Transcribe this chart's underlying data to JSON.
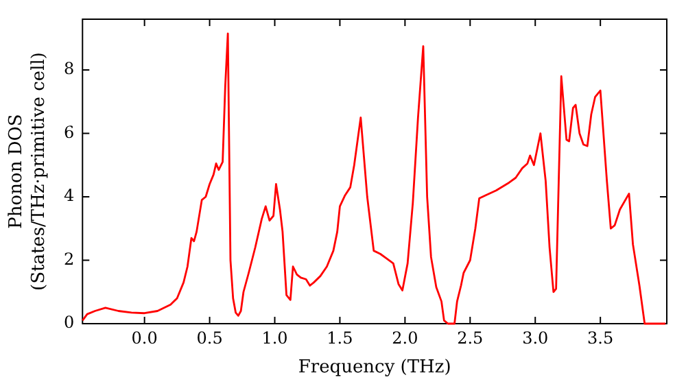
{
  "chart_data": {
    "type": "line",
    "xlabel": "Frequency (THz)",
    "ylabel": "Phonon DOS\n(States/THz·primitive cell)",
    "x": [
      -0.476,
      -0.44,
      -0.38,
      -0.3,
      -0.2,
      -0.1,
      0.0,
      0.1,
      0.2,
      0.25,
      0.3,
      0.33,
      0.36,
      0.38,
      0.4,
      0.44,
      0.47,
      0.5,
      0.53,
      0.55,
      0.57,
      0.6,
      0.62,
      0.64,
      0.66,
      0.68,
      0.7,
      0.72,
      0.74,
      0.76,
      0.8,
      0.85,
      0.9,
      0.93,
      0.96,
      0.99,
      1.01,
      1.04,
      1.06,
      1.09,
      1.12,
      1.14,
      1.17,
      1.2,
      1.24,
      1.27,
      1.3,
      1.35,
      1.4,
      1.45,
      1.48,
      1.5,
      1.54,
      1.58,
      1.61,
      1.66,
      1.68,
      1.71,
      1.76,
      1.81,
      1.86,
      1.91,
      1.95,
      1.98,
      2.02,
      2.06,
      2.1,
      2.14,
      2.17,
      2.2,
      2.24,
      2.28,
      2.3,
      2.33,
      2.38,
      2.4,
      2.43,
      2.45,
      2.5,
      2.54,
      2.57,
      2.62,
      2.7,
      2.8,
      2.85,
      2.9,
      2.94,
      2.96,
      2.99,
      3.04,
      3.08,
      3.11,
      3.14,
      3.16,
      3.2,
      3.24,
      3.26,
      3.29,
      3.31,
      3.34,
      3.37,
      3.4,
      3.43,
      3.46,
      3.49,
      3.5,
      3.55,
      3.58,
      3.61,
      3.65,
      3.72,
      3.75,
      3.8,
      3.84,
      4.0
    ],
    "series": [
      {
        "color": "#ff0000",
        "values": [
          0.1,
          0.3,
          0.4,
          0.5,
          0.4,
          0.35,
          0.33,
          0.4,
          0.6,
          0.8,
          1.3,
          1.8,
          2.7,
          2.6,
          2.9,
          3.9,
          4.0,
          4.4,
          4.7,
          5.05,
          4.85,
          5.1,
          7.5,
          9.15,
          2.0,
          0.8,
          0.35,
          0.25,
          0.4,
          1.0,
          1.6,
          2.4,
          3.3,
          3.7,
          3.25,
          3.4,
          4.4,
          3.6,
          2.9,
          0.9,
          0.75,
          1.8,
          1.55,
          1.45,
          1.4,
          1.2,
          1.3,
          1.5,
          1.8,
          2.3,
          2.9,
          3.7,
          4.05,
          4.3,
          5.0,
          6.5,
          5.5,
          4.0,
          2.3,
          2.2,
          2.05,
          1.9,
          1.25,
          1.05,
          1.9,
          3.8,
          6.5,
          8.75,
          4.0,
          2.1,
          1.15,
          0.7,
          0.1,
          0,
          0,
          0.7,
          1.2,
          1.6,
          2.0,
          3.0,
          3.95,
          4.05,
          4.2,
          4.45,
          4.6,
          4.9,
          5.05,
          5.3,
          5.0,
          6.0,
          4.5,
          2.4,
          1.0,
          1.1,
          7.8,
          5.8,
          5.75,
          6.8,
          6.9,
          6.0,
          5.65,
          5.6,
          6.6,
          7.15,
          7.3,
          7.35,
          4.5,
          3.0,
          3.1,
          3.6,
          4.1,
          2.5,
          1.2,
          0,
          0
        ]
      }
    ],
    "xlim": [
      -0.476,
      4.01
    ],
    "ylim": [
      0,
      9.6
    ],
    "xticks": [
      {
        "value": 0,
        "label": "0.0"
      },
      {
        "value": 0.5,
        "label": "0.5"
      },
      {
        "value": 1,
        "label": "1.0"
      },
      {
        "value": 1.5,
        "label": "1.5"
      },
      {
        "value": 2,
        "label": "2.0"
      },
      {
        "value": 2.5,
        "label": "2.5"
      },
      {
        "value": 3,
        "label": "3.0"
      },
      {
        "value": 3.5,
        "label": "3.5"
      }
    ],
    "yticks": [
      0,
      2,
      4,
      6,
      8
    ],
    "grid": false,
    "legend": false,
    "marker": "none",
    "line_style": "solid"
  }
}
